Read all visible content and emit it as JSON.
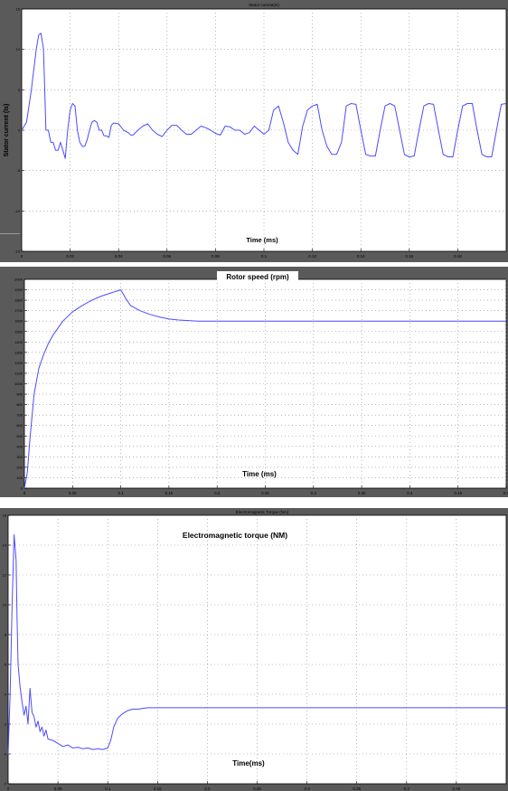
{
  "colors": {
    "frame": "#5a5a5a",
    "axes_bg": "#ffffff",
    "trace": "#4a4cff",
    "grid": "#8a8a8a"
  },
  "chart_data": [
    {
      "id": "stator",
      "type": "line",
      "title": "Stator current(Is)",
      "ylabel": "Stator current (Is)",
      "xlabel": "Time (ms)",
      "xlim": [
        0,
        0.2
      ],
      "ylim": [
        -15,
        15
      ],
      "xticks": [
        0,
        0.02,
        0.04,
        0.06,
        0.08,
        0.1,
        0.12,
        0.14,
        0.16,
        0.18
      ],
      "xticklabels": [
        "0",
        "0.02",
        "0.04",
        "0.06",
        "0.08",
        "0.1",
        "0.12",
        "0.14",
        "0.16",
        "0.18"
      ],
      "yticks": [
        -15,
        -10,
        -5,
        0,
        5,
        10,
        15
      ],
      "yticklabels": [
        "-15",
        "-10",
        "-5",
        "0",
        "5",
        "10",
        "15"
      ],
      "grid": true,
      "series": [
        {
          "x": [
            0,
            0.002,
            0.004,
            0.006,
            0.007,
            0.008,
            0.009,
            0.0095,
            0.01,
            0.011,
            0.012,
            0.013,
            0.014,
            0.015,
            0.016,
            0.017,
            0.018,
            0.019,
            0.02,
            0.021,
            0.022,
            0.023,
            0.024,
            0.025,
            0.026,
            0.027,
            0.028,
            0.029,
            0.03,
            0.031,
            0.032,
            0.033,
            0.034,
            0.035,
            0.036,
            0.037,
            0.038,
            0.04,
            0.042,
            0.044,
            0.045,
            0.046,
            0.048,
            0.05,
            0.052,
            0.054,
            0.056,
            0.058,
            0.06,
            0.062,
            0.064,
            0.066,
            0.068,
            0.07,
            0.072,
            0.074,
            0.076,
            0.078,
            0.08,
            0.082,
            0.084,
            0.086,
            0.088,
            0.09,
            0.092,
            0.094,
            0.096,
            0.098,
            0.1,
            0.102,
            0.104,
            0.106,
            0.108,
            0.11,
            0.112,
            0.114,
            0.116,
            0.118,
            0.12,
            0.122,
            0.124,
            0.126,
            0.128,
            0.13,
            0.132,
            0.134,
            0.136,
            0.138,
            0.14,
            0.142,
            0.144,
            0.146,
            0.148,
            0.15,
            0.152,
            0.154,
            0.156,
            0.158,
            0.16,
            0.162,
            0.164,
            0.166,
            0.168,
            0.17,
            0.172,
            0.174,
            0.176,
            0.178,
            0.18,
            0.182,
            0.184,
            0.186,
            0.188,
            0.19,
            0.192,
            0.194,
            0.196,
            0.198,
            0.2
          ],
          "y": [
            0,
            1,
            5,
            10,
            11.8,
            12,
            10,
            5,
            0,
            0,
            -1.5,
            -1.5,
            -2.5,
            -2.5,
            -1.5,
            -2.5,
            -3.5,
            0,
            2.5,
            3.3,
            3,
            0,
            -1.5,
            -2,
            -2,
            -1.2,
            0,
            1,
            1.2,
            1,
            0,
            0,
            -0.7,
            -0.7,
            -0.9,
            0.6,
            0.9,
            0.8,
            0,
            -0.3,
            -0.6,
            -0.6,
            0,
            0.5,
            0.8,
            0,
            -0.5,
            -0.8,
            0,
            0.6,
            0.6,
            0,
            -0.5,
            -0.5,
            0,
            0.5,
            0.3,
            0,
            -0.4,
            -0.6,
            0.5,
            0.4,
            0,
            0,
            -0.5,
            -0.3,
            0.5,
            0,
            -0.5,
            0,
            2.5,
            3,
            1,
            -1.5,
            -2.5,
            -3,
            0.5,
            2.5,
            3,
            3.2,
            0,
            -2,
            -3,
            -3,
            -1.5,
            3,
            3.3,
            3.2,
            0,
            -3,
            -3.2,
            -3.2,
            0,
            3,
            3.3,
            3,
            0,
            -3,
            -3.3,
            -3.2,
            0,
            3,
            3.3,
            3.2,
            0,
            -3,
            -3.3,
            -3.3,
            0,
            3,
            3.3,
            3.3,
            0,
            -3,
            -3.3,
            -3.3,
            0,
            3.2,
            3.3
          ]
        }
      ]
    },
    {
      "id": "speed",
      "type": "line",
      "title": "Rotor speed (rpm)",
      "xlabel": "Time (ms)",
      "xlim": [
        0,
        0.5
      ],
      "ylim": [
        0,
        2000
      ],
      "xticks": [
        0,
        0.05,
        0.1,
        0.15,
        0.2,
        0.25,
        0.3,
        0.35,
        0.4,
        0.45,
        0.5
      ],
      "xticklabels": [
        "0",
        "0.05",
        "0.1",
        "0.15",
        "0.2",
        "0.25",
        "0.3",
        "0.35",
        "0.4",
        "0.45",
        "0.5"
      ],
      "yticks": [
        0,
        100,
        200,
        300,
        400,
        500,
        600,
        700,
        800,
        900,
        1000,
        1100,
        1200,
        1300,
        1400,
        1500,
        1600,
        1700,
        1800,
        1900,
        2000
      ],
      "yticklabels": [
        "0",
        "100",
        "200",
        "300",
        "400",
        "500",
        "600",
        "700",
        "800",
        "900",
        "1000",
        "1100",
        "1200",
        "1300",
        "1400",
        "1500",
        "1600",
        "1700",
        "1800",
        "1900",
        "2000"
      ],
      "grid": true,
      "series": [
        {
          "x": [
            0,
            0.003,
            0.006,
            0.01,
            0.015,
            0.02,
            0.025,
            0.03,
            0.04,
            0.05,
            0.06,
            0.07,
            0.08,
            0.09,
            0.1,
            0.105,
            0.11,
            0.12,
            0.13,
            0.14,
            0.15,
            0.16,
            0.17,
            0.18,
            0.2,
            0.25,
            0.3,
            0.35,
            0.4,
            0.45,
            0.5
          ],
          "y": [
            0,
            150,
            500,
            900,
            1150,
            1280,
            1390,
            1470,
            1600,
            1690,
            1750,
            1800,
            1840,
            1870,
            1900,
            1820,
            1750,
            1700,
            1665,
            1640,
            1620,
            1610,
            1605,
            1600,
            1600,
            1600,
            1600,
            1600,
            1600,
            1600,
            1600
          ]
        }
      ]
    },
    {
      "id": "torque",
      "type": "line",
      "title": "Electromagnetic Torque (Nm)",
      "subtitle": "Electromagnetic torque (NM)",
      "xlabel": "Time(ms)",
      "xlim": [
        0,
        0.5
      ],
      "ylim": [
        -2,
        16
      ],
      "xticks": [
        0,
        0.05,
        0.1,
        0.15,
        0.2,
        0.25,
        0.3,
        0.35,
        0.4,
        0.45
      ],
      "xticklabels": [
        "0",
        "0.05",
        "0.1",
        "0.15",
        "0.2",
        "0.25",
        "0.3",
        "0.35",
        "0.4",
        "0.45"
      ],
      "yticks": [
        -2,
        0,
        2,
        4,
        6,
        8,
        10,
        12,
        14,
        16
      ],
      "yticklabels": [
        "-2",
        "0",
        "2",
        "4",
        "6",
        "8",
        "10",
        "12",
        "14",
        "16"
      ],
      "grid": true,
      "series": [
        {
          "x": [
            0,
            0.002,
            0.004,
            0.006,
            0.008,
            0.009,
            0.01,
            0.012,
            0.014,
            0.016,
            0.018,
            0.02,
            0.022,
            0.024,
            0.026,
            0.028,
            0.03,
            0.032,
            0.034,
            0.036,
            0.038,
            0.04,
            0.045,
            0.05,
            0.055,
            0.06,
            0.065,
            0.07,
            0.075,
            0.08,
            0.085,
            0.09,
            0.095,
            0.1,
            0.103,
            0.106,
            0.11,
            0.115,
            0.12,
            0.125,
            0.13,
            0.14,
            0.15,
            0.16,
            0.17,
            0.18,
            0.19,
            0.2,
            0.21,
            0.22,
            0.23,
            0.24,
            0.25,
            0.26,
            0.27,
            0.28,
            0.29,
            0.3,
            0.31,
            0.32,
            0.33,
            0.34,
            0.35,
            0.36,
            0.37,
            0.38,
            0.39,
            0.4,
            0.41,
            0.42,
            0.43,
            0.44,
            0.45,
            0.46,
            0.47,
            0.48,
            0.49,
            0.5
          ],
          "y": [
            0,
            4,
            10,
            14.7,
            13,
            9,
            6,
            4.5,
            3.5,
            2.6,
            3.2,
            2,
            4.4,
            2.8,
            2.5,
            1.8,
            2.2,
            1.5,
            1.8,
            1.2,
            1.6,
            1,
            0.9,
            0.7,
            0.5,
            0.6,
            0.4,
            0.45,
            0.35,
            0.4,
            0.3,
            0.35,
            0.3,
            0.4,
            0.9,
            1.8,
            2.4,
            2.7,
            2.9,
            3.0,
            3.0,
            3.1,
            3.1,
            3.1,
            3.1,
            3.1,
            3.1,
            3.1,
            3.1,
            3.1,
            3.1,
            3.1,
            3.1,
            3.1,
            3.1,
            3.1,
            3.1,
            3.1,
            3.1,
            3.1,
            3.1,
            3.1,
            3.1,
            3.1,
            3.1,
            3.1,
            3.1,
            3.1,
            3.1,
            3.1,
            3.1,
            3.1,
            3.1,
            3.1,
            3.1,
            3.1,
            3.1,
            3.1
          ]
        }
      ]
    }
  ]
}
